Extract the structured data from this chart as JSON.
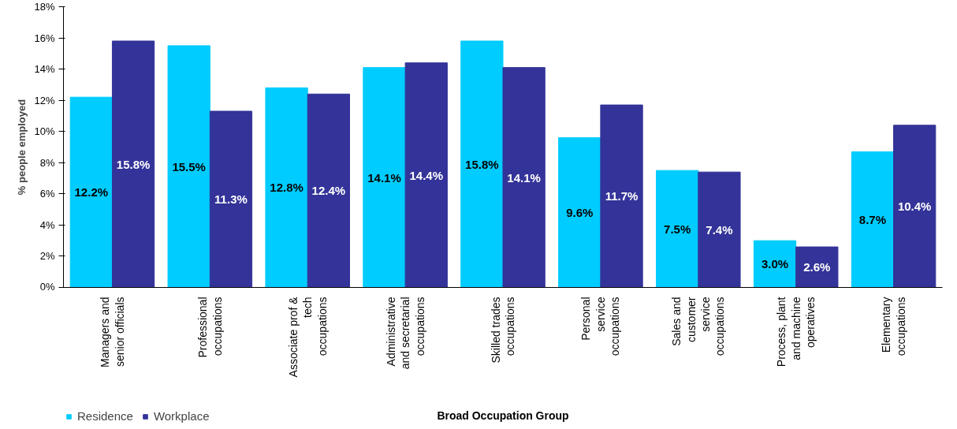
{
  "chart_data": {
    "type": "bar",
    "xlabel": "Broad Occupation Group",
    "ylabel": "% people employed",
    "categories": [
      "Managers and\nsenior officials",
      "Professional\noccupations",
      "Associate prof &\ntech\noccupations",
      "Administrative\nand secretarial\noccupations",
      "Skilled trades\noccupations",
      "Personal\nservice\noccupations",
      "Sales and\ncustomer\nservice\noccupations",
      "Process, plant\nand machine\noperatives",
      "Elementary\noccupations"
    ],
    "series": [
      {
        "name": "Residence",
        "color": "#00ccff",
        "values": [
          12.2,
          15.5,
          12.8,
          14.1,
          15.8,
          9.6,
          7.5,
          3.0,
          8.7
        ],
        "value_labels": [
          "12.2%",
          "15.5%",
          "12.8%",
          "14.1%",
          "15.8%",
          "9.6%",
          "7.5%",
          "3.0%",
          "8.7%"
        ]
      },
      {
        "name": "Workplace",
        "color": "#333399",
        "values": [
          15.8,
          11.3,
          12.4,
          14.4,
          14.1,
          11.7,
          7.4,
          2.6,
          10.4
        ],
        "value_labels": [
          "15.8%",
          "11.3%",
          "12.4%",
          "14.4%",
          "14.1%",
          "11.7%",
          "7.4%",
          "2.6%",
          "10.4%"
        ]
      }
    ],
    "ylim": [
      0,
      18
    ],
    "yticks": [
      {
        "value": 0,
        "label": "0%"
      },
      {
        "value": 2,
        "label": "2%"
      },
      {
        "value": 4,
        "label": "4%"
      },
      {
        "value": 6,
        "label": "6%"
      },
      {
        "value": 8,
        "label": "8%"
      },
      {
        "value": 10,
        "label": "10%"
      },
      {
        "value": 12,
        "label": "12%"
      },
      {
        "value": 14,
        "label": "14%"
      },
      {
        "value": 16,
        "label": "16%"
      },
      {
        "value": 18,
        "label": "18%"
      }
    ],
    "grid": false,
    "legend": "bottom left"
  }
}
